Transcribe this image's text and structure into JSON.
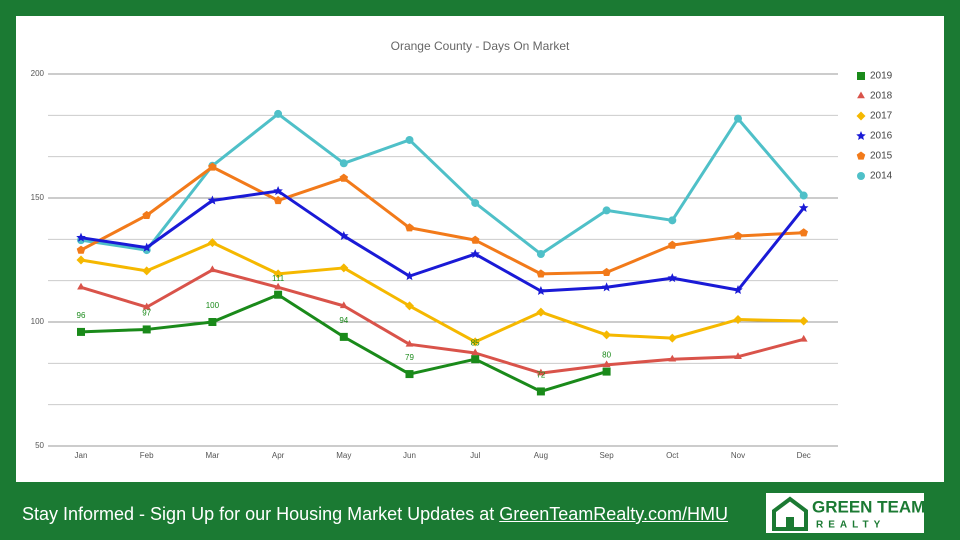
{
  "chart_data": {
    "type": "line",
    "title": "Orange County - Days On Market",
    "categories": [
      "Jan",
      "Feb",
      "Mar",
      "Apr",
      "May",
      "Jun",
      "Jul",
      "Aug",
      "Sep",
      "Oct",
      "Nov",
      "Dec"
    ],
    "ylim": [
      50,
      200
    ],
    "yticks": [
      50,
      100,
      150,
      200
    ],
    "minor_yticks": [
      66.67,
      83.33,
      116.67,
      133.33,
      166.67,
      183.33
    ],
    "grid": true,
    "legend": "right",
    "series": [
      {
        "name": "2019",
        "color": "#1a8a1a",
        "marker": "square",
        "data_labels": true,
        "values": [
          96,
          97,
          100,
          111,
          94,
          79,
          85,
          72,
          80,
          null,
          null,
          null
        ]
      },
      {
        "name": "2018",
        "color": "#d9534a",
        "marker": "triangle",
        "values": [
          114,
          106,
          121,
          114,
          106.5,
          91,
          87.5,
          79.4,
          82.7,
          85,
          86,
          93
        ]
      },
      {
        "name": "2017",
        "color": "#f5b800",
        "marker": "diamond",
        "values": [
          125,
          120.6,
          132,
          119.4,
          121.8,
          106.5,
          92,
          104,
          94.8,
          93.5,
          101,
          100.4
        ]
      },
      {
        "name": "2016",
        "color": "#1a1ad6",
        "marker": "star",
        "values": [
          134,
          130,
          149,
          152.8,
          134.7,
          118.5,
          127.4,
          112.5,
          114,
          117.7,
          112.9,
          146
        ]
      },
      {
        "name": "2015",
        "color": "#f27a1a",
        "marker": "pentagon",
        "values": [
          129,
          143,
          162.5,
          149,
          158,
          138,
          133,
          119.4,
          120,
          131,
          134.7,
          136
        ]
      },
      {
        "name": "2014",
        "color": "#4fc0c8",
        "marker": "circle",
        "values": [
          133,
          129,
          163,
          183.9,
          164,
          173.4,
          148,
          127.4,
          145,
          141,
          182,
          151
        ]
      }
    ]
  },
  "footer": {
    "text": "Stay Informed - Sign Up for our Housing Market Updates at ",
    "link": "GreenTeamRealty.com/HMU"
  },
  "logo": {
    "line1": "GREEN TEAM",
    "line2": "REALTY"
  }
}
